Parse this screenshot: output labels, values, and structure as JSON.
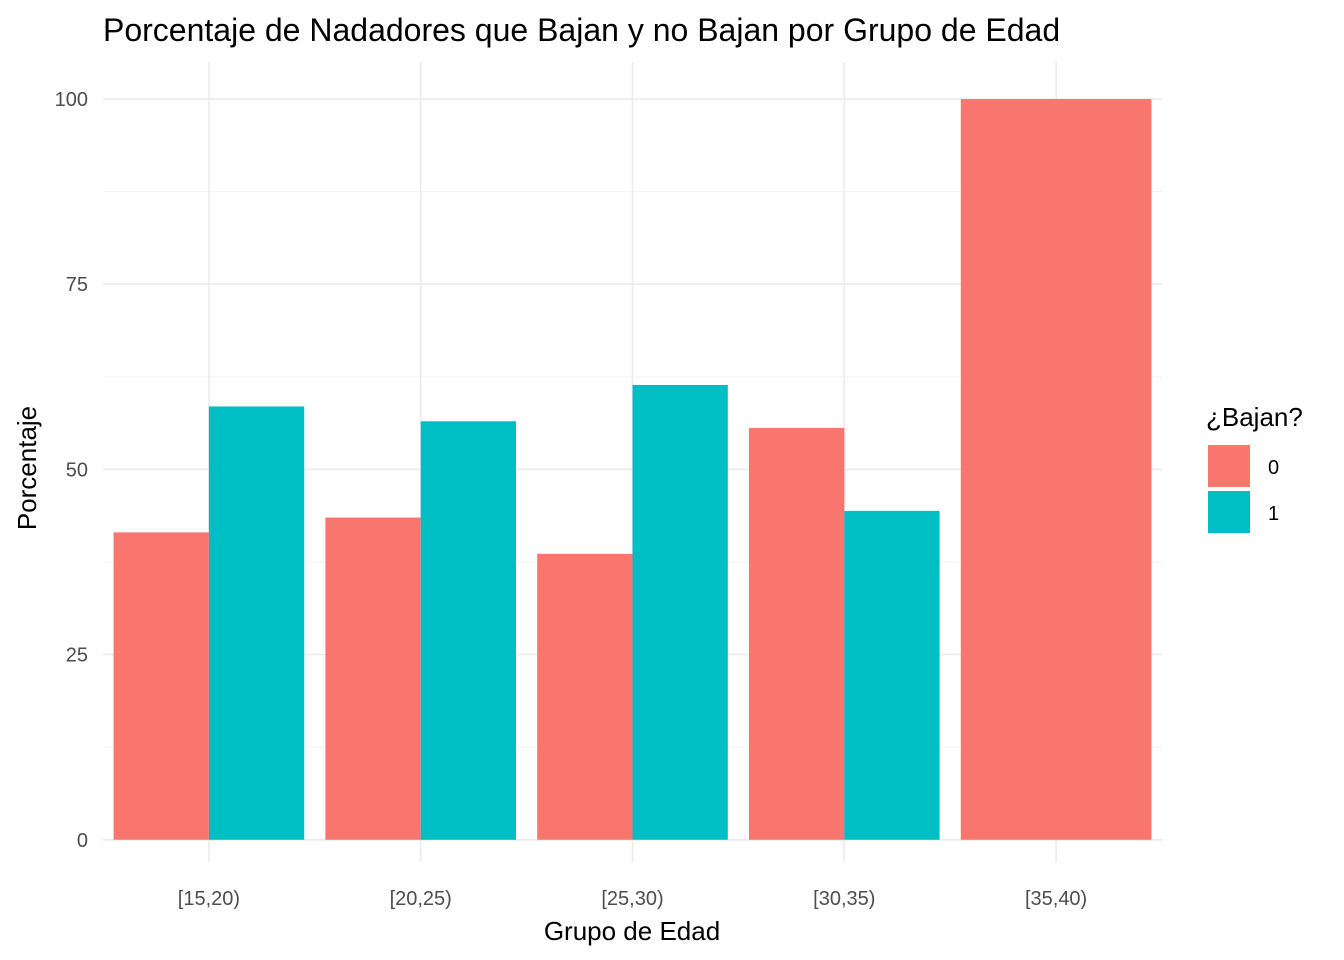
{
  "chart_data": {
    "type": "bar",
    "title": "Porcentaje de Nadadores que Bajan y no Bajan por Grupo de Edad",
    "xlabel": "Grupo de Edad",
    "ylabel": "Porcentaje",
    "categories": [
      "[15,20)",
      "[20,25)",
      "[25,30)",
      "[30,35)",
      "[35,40)"
    ],
    "series": [
      {
        "name": "0",
        "color": "#F8766D",
        "values": [
          41.5,
          43.5,
          38.6,
          55.6,
          100
        ]
      },
      {
        "name": "1",
        "color": "#00BFC4",
        "values": [
          58.5,
          56.5,
          61.4,
          44.4,
          null
        ]
      }
    ],
    "ylim": [
      -3,
      105
    ],
    "yticks": [
      0,
      25,
      50,
      75,
      100
    ],
    "ytick_labels": [
      "0",
      "25",
      "50",
      "75",
      "100"
    ],
    "grid": true,
    "legend": {
      "title": "¿Bajan?",
      "position": "right"
    }
  }
}
